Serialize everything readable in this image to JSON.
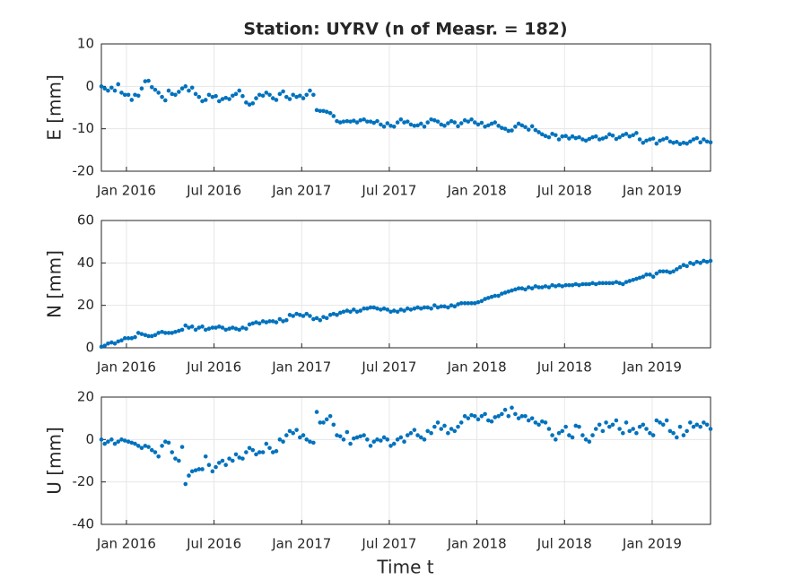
{
  "chart_data": [
    {
      "type": "scatter",
      "title": "Station: UYRV (n of Measr. = 182)",
      "ylabel": "E [mm]",
      "color": "#0072bd",
      "grid": true,
      "xlim": [
        2015.857,
        2019.333
      ],
      "ylim": [
        -20,
        10
      ],
      "yticks": [
        -20,
        -10,
        0,
        10
      ],
      "xticks": [
        {
          "value": 2016,
          "label": "Jan 2016"
        },
        {
          "value": 2016.5,
          "label": "Jul 2016"
        },
        {
          "value": 2017,
          "label": "Jan 2017"
        },
        {
          "value": 2017.5,
          "label": "Jul 2017"
        },
        {
          "value": 2018,
          "label": "Jan 2018"
        },
        {
          "value": 2018.5,
          "label": "Jul 2018"
        },
        {
          "value": 2019,
          "label": "Jan 2019"
        }
      ],
      "x": [
        2015.857,
        2015.876,
        2015.895,
        2015.915,
        2015.934,
        2015.953,
        2015.972,
        2015.991,
        2016.011,
        2016.03,
        2016.049,
        2016.068,
        2016.087,
        2016.107,
        2016.126,
        2016.145,
        2016.164,
        2016.183,
        2016.203,
        2016.222,
        2016.241,
        2016.26,
        2016.279,
        2016.299,
        2016.318,
        2016.337,
        2016.356,
        2016.375,
        2016.395,
        2016.414,
        2016.433,
        2016.452,
        2016.471,
        2016.491,
        2016.51,
        2016.529,
        2016.548,
        2016.567,
        2016.587,
        2016.606,
        2016.625,
        2016.644,
        2016.663,
        2016.683,
        2016.702,
        2016.721,
        2016.74,
        2016.759,
        2016.779,
        2016.798,
        2016.817,
        2016.836,
        2016.855,
        2016.875,
        2016.894,
        2016.913,
        2016.932,
        2016.951,
        2016.971,
        2016.99,
        2017.009,
        2017.028,
        2017.047,
        2017.067,
        2017.086,
        2017.105,
        2017.124,
        2017.143,
        2017.163,
        2017.182,
        2017.201,
        2017.22,
        2017.239,
        2017.259,
        2017.278,
        2017.297,
        2017.316,
        2017.335,
        2017.355,
        2017.374,
        2017.393,
        2017.412,
        2017.431,
        2017.451,
        2017.47,
        2017.489,
        2017.508,
        2017.527,
        2017.547,
        2017.566,
        2017.585,
        2017.604,
        2017.623,
        2017.643,
        2017.662,
        2017.681,
        2017.7,
        2017.719,
        2017.739,
        2017.758,
        2017.777,
        2017.796,
        2017.815,
        2017.835,
        2017.854,
        2017.873,
        2017.892,
        2017.911,
        2017.931,
        2017.95,
        2017.969,
        2017.988,
        2018.007,
        2018.027,
        2018.046,
        2018.065,
        2018.084,
        2018.103,
        2018.123,
        2018.142,
        2018.161,
        2018.18,
        2018.199,
        2018.219,
        2018.238,
        2018.257,
        2018.276,
        2018.295,
        2018.315,
        2018.334,
        2018.353,
        2018.372,
        2018.391,
        2018.411,
        2018.43,
        2018.449,
        2018.468,
        2018.487,
        2018.507,
        2018.526,
        2018.545,
        2018.564,
        2018.583,
        2018.603,
        2018.622,
        2018.641,
        2018.66,
        2018.679,
        2018.699,
        2018.718,
        2018.737,
        2018.756,
        2018.775,
        2018.795,
        2018.814,
        2018.833,
        2018.852,
        2018.871,
        2018.891,
        2018.91,
        2018.929,
        2018.948,
        2018.967,
        2018.987,
        2019.006,
        2019.025,
        2019.044,
        2019.063,
        2019.083,
        2019.102,
        2019.121,
        2019.14,
        2019.159,
        2019.179,
        2019.198,
        2019.217,
        2019.236,
        2019.255,
        2019.275,
        2019.294,
        2019.313,
        2019.333
      ],
      "values": [
        0,
        -0.5,
        -1,
        -0.3,
        -1,
        0.5,
        -1.5,
        -2,
        -2,
        -3.2,
        -2,
        -2.2,
        -0.5,
        1.2,
        1.3,
        -0.2,
        -0.8,
        -1.5,
        -2.5,
        -3.3,
        -1,
        -1.8,
        -2,
        -1.3,
        -0.5,
        0,
        -1,
        -0.3,
        -1.8,
        -2.5,
        -3.5,
        -3.2,
        -2,
        -2.5,
        -2.3,
        -3.5,
        -3,
        -2.7,
        -3,
        -2.2,
        -1.8,
        -1,
        -2.3,
        -3.8,
        -4.3,
        -4,
        -2.8,
        -2,
        -2.2,
        -1.5,
        -2,
        -2.8,
        -3.2,
        -1.8,
        -1.2,
        -2.5,
        -3,
        -2,
        -2.5,
        -2.2,
        -2.8,
        -2,
        -1,
        -2,
        -5.6,
        -5.8,
        -5.8,
        -6,
        -6.3,
        -7,
        -8.2,
        -8.5,
        -8.3,
        -8.2,
        -8.3,
        -8.1,
        -8.5,
        -8,
        -7.8,
        -8.3,
        -8.3,
        -8.6,
        -8.2,
        -9,
        -9.5,
        -8.7,
        -9.3,
        -9.5,
        -8.5,
        -7.8,
        -8.5,
        -8.3,
        -9,
        -9.3,
        -9.2,
        -8.8,
        -9.5,
        -8.5,
        -7.8,
        -8,
        -8.3,
        -9,
        -9.3,
        -8.7,
        -8.2,
        -8.5,
        -9.4,
        -8.7,
        -8,
        -8.3,
        -7.8,
        -8.5,
        -9,
        -8.6,
        -9.5,
        -9.2,
        -8.8,
        -8.5,
        -9.3,
        -9.8,
        -10,
        -10.5,
        -10.4,
        -9.5,
        -8.8,
        -9.2,
        -9.6,
        -10.2,
        -9.4,
        -10.3,
        -10.8,
        -11.3,
        -11.7,
        -12,
        -11.2,
        -11.5,
        -12.5,
        -11.8,
        -11.7,
        -12.3,
        -11.8,
        -12.2,
        -12,
        -12.5,
        -12.8,
        -12.4,
        -12,
        -11.8,
        -12.5,
        -12.3,
        -12,
        -11.3,
        -11.6,
        -12.4,
        -12,
        -11.5,
        -11.2,
        -11.8,
        -11.5,
        -11,
        -12.5,
        -13.3,
        -12.8,
        -12.5,
        -12.3,
        -13.5,
        -12.8,
        -12.5,
        -12.2,
        -13,
        -13.3,
        -13.1,
        -13.6,
        -13.3,
        -13.5,
        -13,
        -12.5,
        -12.2,
        -13.2,
        -12.5,
        -13,
        -13.2
      ]
    },
    {
      "type": "scatter",
      "ylabel": "N [mm]",
      "color": "#0072bd",
      "grid": true,
      "xlim": [
        2015.857,
        2019.333
      ],
      "ylim": [
        0,
        60
      ],
      "yticks": [
        0,
        20,
        40,
        60
      ],
      "xticks": [
        {
          "value": 2016,
          "label": "Jan 2016"
        },
        {
          "value": 2016.5,
          "label": "Jul 2016"
        },
        {
          "value": 2017,
          "label": "Jan 2017"
        },
        {
          "value": 2017.5,
          "label": "Jul 2017"
        },
        {
          "value": 2018,
          "label": "Jan 2018"
        },
        {
          "value": 2018.5,
          "label": "Jul 2018"
        },
        {
          "value": 2019,
          "label": "Jan 2019"
        }
      ],
      "x": [
        2015.857,
        2015.876,
        2015.895,
        2015.915,
        2015.934,
        2015.953,
        2015.972,
        2015.991,
        2016.011,
        2016.03,
        2016.049,
        2016.068,
        2016.087,
        2016.107,
        2016.126,
        2016.145,
        2016.164,
        2016.183,
        2016.203,
        2016.222,
        2016.241,
        2016.26,
        2016.279,
        2016.299,
        2016.318,
        2016.337,
        2016.356,
        2016.375,
        2016.395,
        2016.414,
        2016.433,
        2016.452,
        2016.471,
        2016.491,
        2016.51,
        2016.529,
        2016.548,
        2016.567,
        2016.587,
        2016.606,
        2016.625,
        2016.644,
        2016.663,
        2016.683,
        2016.702,
        2016.721,
        2016.74,
        2016.759,
        2016.779,
        2016.798,
        2016.817,
        2016.836,
        2016.855,
        2016.875,
        2016.894,
        2016.913,
        2016.932,
        2016.951,
        2016.971,
        2016.99,
        2017.009,
        2017.028,
        2017.047,
        2017.067,
        2017.086,
        2017.105,
        2017.124,
        2017.143,
        2017.163,
        2017.182,
        2017.201,
        2017.22,
        2017.239,
        2017.259,
        2017.278,
        2017.297,
        2017.316,
        2017.335,
        2017.355,
        2017.374,
        2017.393,
        2017.412,
        2017.431,
        2017.451,
        2017.47,
        2017.489,
        2017.508,
        2017.527,
        2017.547,
        2017.566,
        2017.585,
        2017.604,
        2017.623,
        2017.643,
        2017.662,
        2017.681,
        2017.7,
        2017.719,
        2017.739,
        2017.758,
        2017.777,
        2017.796,
        2017.815,
        2017.835,
        2017.854,
        2017.873,
        2017.892,
        2017.911,
        2017.931,
        2017.95,
        2017.969,
        2017.988,
        2018.007,
        2018.027,
        2018.046,
        2018.065,
        2018.084,
        2018.103,
        2018.123,
        2018.142,
        2018.161,
        2018.18,
        2018.199,
        2018.219,
        2018.238,
        2018.257,
        2018.276,
        2018.295,
        2018.315,
        2018.334,
        2018.353,
        2018.372,
        2018.391,
        2018.411,
        2018.43,
        2018.449,
        2018.468,
        2018.487,
        2018.507,
        2018.526,
        2018.545,
        2018.564,
        2018.583,
        2018.603,
        2018.622,
        2018.641,
        2018.66,
        2018.679,
        2018.699,
        2018.718,
        2018.737,
        2018.756,
        2018.775,
        2018.795,
        2018.814,
        2018.833,
        2018.852,
        2018.871,
        2018.891,
        2018.91,
        2018.929,
        2018.948,
        2018.967,
        2018.987,
        2019.006,
        2019.025,
        2019.044,
        2019.063,
        2019.083,
        2019.102,
        2019.121,
        2019.14,
        2019.159,
        2019.179,
        2019.198,
        2019.217,
        2019.236,
        2019.255,
        2019.275,
        2019.294,
        2019.313,
        2019.333
      ],
      "values": [
        0.5,
        1,
        2,
        2.5,
        2,
        3,
        3.5,
        4.5,
        4.5,
        4.5,
        5,
        7,
        6.5,
        6,
        5.5,
        5.5,
        6,
        7,
        7.5,
        7,
        7,
        7,
        7.5,
        8,
        8.5,
        10.5,
        9.5,
        10,
        8.5,
        9.5,
        10,
        8.5,
        9,
        9.5,
        9.5,
        10,
        9.5,
        8.5,
        9,
        9.5,
        9,
        8.5,
        9.5,
        9,
        11,
        11.5,
        12,
        11.5,
        12.5,
        12,
        12.5,
        12.5,
        12,
        13.5,
        12.5,
        13,
        15.5,
        15,
        16,
        15.5,
        15,
        16,
        15,
        13.5,
        14,
        13,
        14.5,
        14,
        15.5,
        16,
        15.5,
        16.5,
        17,
        17.5,
        17,
        18,
        17,
        17.5,
        18.5,
        18.5,
        19,
        19,
        18.5,
        18,
        18.5,
        18,
        17,
        17.5,
        17,
        18,
        17.5,
        18.5,
        18,
        18.5,
        19,
        18.5,
        19,
        19,
        18.5,
        20,
        19,
        19.5,
        19.5,
        19,
        20,
        19.5,
        20.5,
        21,
        21,
        21,
        21,
        21,
        21.5,
        22,
        23,
        23.5,
        24,
        24.5,
        24.5,
        25.5,
        26,
        26.5,
        27,
        27.5,
        28,
        28,
        27.5,
        28.5,
        28,
        29,
        28.5,
        28.5,
        29,
        28.5,
        29.5,
        29,
        29.5,
        29,
        29.5,
        29.5,
        29.5,
        30,
        29.5,
        30,
        30,
        30,
        30.5,
        30,
        30.5,
        30.5,
        30.5,
        30.5,
        30.5,
        31,
        30.5,
        30,
        31,
        31.5,
        32,
        32.5,
        33,
        33.5,
        34.5,
        34.5,
        33.5,
        35,
        36,
        36,
        36,
        35.5,
        36,
        37,
        38,
        39,
        38.5,
        40,
        39.5,
        40.5,
        40,
        41,
        40.5,
        41
      ]
    },
    {
      "type": "scatter",
      "ylabel": "U [mm]",
      "xlabel": "Time t",
      "color": "#0072bd",
      "grid": true,
      "xlim": [
        2015.857,
        2019.333
      ],
      "ylim": [
        -40,
        20
      ],
      "yticks": [
        -40,
        -20,
        0,
        20
      ],
      "xticks": [
        {
          "value": 2016,
          "label": "Jan 2016"
        },
        {
          "value": 2016.5,
          "label": "Jul 2016"
        },
        {
          "value": 2017,
          "label": "Jan 2017"
        },
        {
          "value": 2017.5,
          "label": "Jul 2017"
        },
        {
          "value": 2018,
          "label": "Jan 2018"
        },
        {
          "value": 2018.5,
          "label": "Jul 2018"
        },
        {
          "value": 2019,
          "label": "Jan 2019"
        }
      ],
      "x": [
        2015.857,
        2015.876,
        2015.895,
        2015.915,
        2015.934,
        2015.953,
        2015.972,
        2015.991,
        2016.011,
        2016.03,
        2016.049,
        2016.068,
        2016.087,
        2016.107,
        2016.126,
        2016.145,
        2016.164,
        2016.183,
        2016.203,
        2016.222,
        2016.241,
        2016.26,
        2016.279,
        2016.299,
        2016.318,
        2016.337,
        2016.356,
        2016.375,
        2016.395,
        2016.414,
        2016.433,
        2016.452,
        2016.471,
        2016.491,
        2016.51,
        2016.529,
        2016.548,
        2016.567,
        2016.587,
        2016.606,
        2016.625,
        2016.644,
        2016.663,
        2016.683,
        2016.702,
        2016.721,
        2016.74,
        2016.759,
        2016.779,
        2016.798,
        2016.817,
        2016.836,
        2016.855,
        2016.875,
        2016.894,
        2016.913,
        2016.932,
        2016.951,
        2016.971,
        2016.99,
        2017.009,
        2017.028,
        2017.047,
        2017.067,
        2017.086,
        2017.105,
        2017.124,
        2017.143,
        2017.163,
        2017.182,
        2017.201,
        2017.22,
        2017.239,
        2017.259,
        2017.278,
        2017.297,
        2017.316,
        2017.335,
        2017.355,
        2017.374,
        2017.393,
        2017.412,
        2017.431,
        2017.451,
        2017.47,
        2017.489,
        2017.508,
        2017.527,
        2017.547,
        2017.566,
        2017.585,
        2017.604,
        2017.623,
        2017.643,
        2017.662,
        2017.681,
        2017.7,
        2017.719,
        2017.739,
        2017.758,
        2017.777,
        2017.796,
        2017.815,
        2017.835,
        2017.854,
        2017.873,
        2017.892,
        2017.911,
        2017.931,
        2017.95,
        2017.969,
        2017.988,
        2018.007,
        2018.027,
        2018.046,
        2018.065,
        2018.084,
        2018.103,
        2018.123,
        2018.142,
        2018.161,
        2018.18,
        2018.199,
        2018.219,
        2018.238,
        2018.257,
        2018.276,
        2018.295,
        2018.315,
        2018.334,
        2018.353,
        2018.372,
        2018.391,
        2018.411,
        2018.43,
        2018.449,
        2018.468,
        2018.487,
        2018.507,
        2018.526,
        2018.545,
        2018.564,
        2018.583,
        2018.603,
        2018.622,
        2018.641,
        2018.66,
        2018.679,
        2018.699,
        2018.718,
        2018.737,
        2018.756,
        2018.775,
        2018.795,
        2018.814,
        2018.833,
        2018.852,
        2018.871,
        2018.891,
        2018.91,
        2018.929,
        2018.948,
        2018.967,
        2018.987,
        2019.006,
        2019.025,
        2019.044,
        2019.063,
        2019.083,
        2019.102,
        2019.121,
        2019.14,
        2019.159,
        2019.179,
        2019.198,
        2019.217,
        2019.236,
        2019.255,
        2019.275,
        2019.294,
        2019.313,
        2019.333
      ],
      "values": [
        0,
        -2,
        -1,
        0,
        -2,
        -1,
        0,
        -0.5,
        -1,
        -1.5,
        -2,
        -3,
        -4,
        -3,
        -3.5,
        -5,
        -6,
        -8,
        -3,
        -1,
        -1.5,
        -6,
        -9,
        -10,
        -3.5,
        -21,
        -17,
        -15,
        -14.5,
        -14,
        -14,
        -8,
        -12,
        -15,
        -13,
        -11,
        -10,
        -12,
        -9,
        -10,
        -7,
        -8.5,
        -9,
        -6,
        -4,
        -5,
        -7,
        -6,
        -6,
        -2,
        -4,
        -6,
        -5.5,
        0,
        -1,
        2,
        4,
        3,
        4.5,
        1,
        2,
        0,
        -1,
        -1.5,
        13,
        8,
        8,
        9.5,
        11,
        7,
        2,
        1.5,
        0,
        3.5,
        -2,
        0.5,
        1,
        1.5,
        2,
        0,
        -3,
        -1,
        0,
        -0.5,
        1,
        0,
        -3,
        -2,
        0,
        1,
        -1,
        2,
        3,
        4.5,
        2,
        1,
        0,
        4,
        3,
        6,
        8,
        5,
        6.5,
        3,
        5,
        4,
        6,
        8,
        11,
        10,
        11.5,
        11,
        9.5,
        11,
        12,
        9,
        8.5,
        10.5,
        11,
        12,
        14,
        11,
        15,
        12,
        10,
        11,
        11,
        9,
        10,
        8,
        7,
        8.5,
        8,
        5,
        2,
        0,
        3,
        4,
        6,
        2,
        1,
        6.5,
        6,
        2,
        0,
        -1,
        2,
        5,
        7,
        4,
        8,
        6,
        7,
        9,
        5,
        3,
        8,
        4,
        5,
        3,
        6,
        7,
        5,
        3,
        2,
        9,
        8,
        7,
        9,
        4,
        3,
        1,
        6,
        2,
        4,
        8,
        6,
        7,
        6,
        8,
        7,
        5
      ]
    }
  ]
}
